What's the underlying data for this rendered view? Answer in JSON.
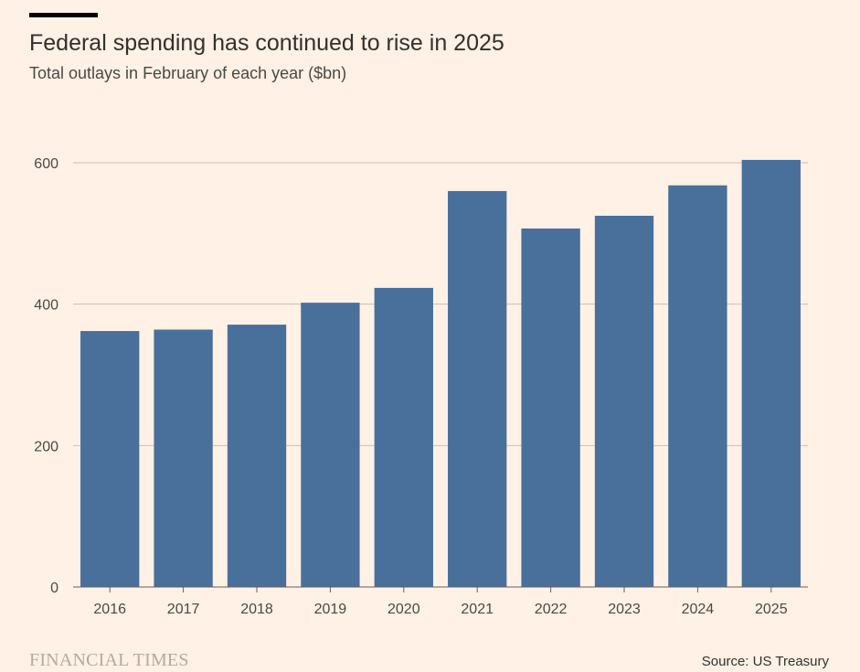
{
  "header": {
    "title": "Federal spending has continued to rise in 2025",
    "subtitle": "Total outlays in February of each year ($bn)"
  },
  "footer": {
    "logo_text": "FINANCIAL TIMES",
    "source": "Source: US Treasury"
  },
  "colors": {
    "background": "#fff1e5",
    "bar": "#48709b",
    "grid": "#c9bfb7",
    "axis_text": "#4d4845"
  },
  "chart_data": {
    "type": "bar",
    "title": "Federal spending has continued to rise in 2025",
    "subtitle": "Total outlays in February of each year ($bn)",
    "categories": [
      "2016",
      "2017",
      "2018",
      "2019",
      "2020",
      "2021",
      "2022",
      "2023",
      "2024",
      "2025"
    ],
    "values": [
      362,
      364,
      371,
      402,
      423,
      560,
      507,
      525,
      568,
      604
    ],
    "xlabel": "",
    "ylabel": "",
    "ylim": [
      0,
      600
    ],
    "yticks": [
      0,
      200,
      400,
      600
    ],
    "grid": true,
    "legend": "none"
  }
}
